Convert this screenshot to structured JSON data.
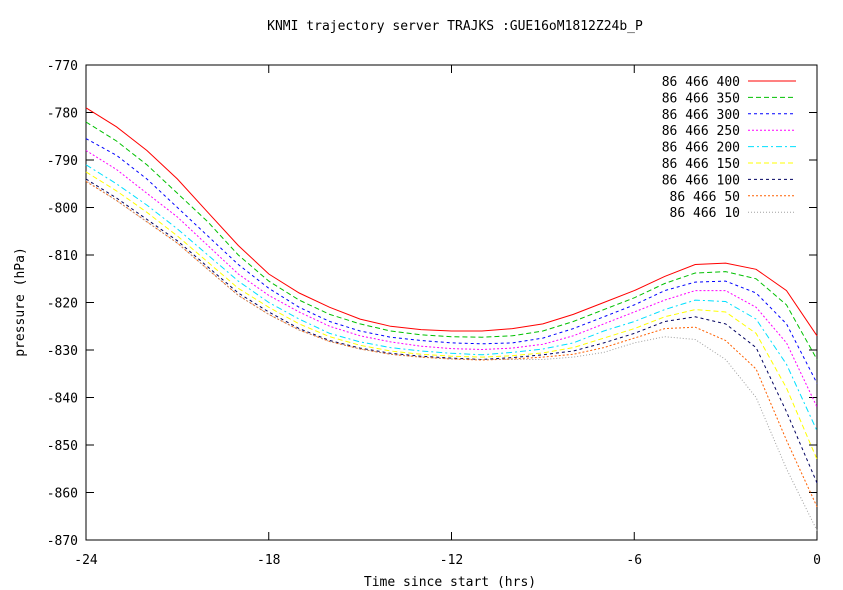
{
  "chart_data": {
    "type": "line",
    "title": "KNMI trajectory server TRAJKS :GUE16oM1812Z24b_P",
    "xlabel": "Time since start (hrs)",
    "ylabel": "pressure (hPa)",
    "xlim": [
      -24,
      0
    ],
    "ylim": [
      -870,
      -770
    ],
    "xticks": [
      -24,
      -18,
      -12,
      -6,
      0
    ],
    "xtick_labels": [
      "-24",
      "-18",
      "-12",
      "-6",
      "0"
    ],
    "yticks": [
      -870,
      -860,
      -850,
      -840,
      -830,
      -820,
      -810,
      -800,
      -790,
      -780,
      -770
    ],
    "ytick_labels": [
      "-870",
      "-860",
      "-850",
      "-840",
      "-830",
      "-820",
      "-810",
      "-800",
      "-790",
      "-780",
      "-770"
    ],
    "legend_position": "top-right",
    "x": [
      -24,
      -23,
      -22,
      -21,
      -20,
      -19,
      -18,
      -17,
      -16,
      -15,
      -14,
      -13,
      -12,
      -11,
      -10,
      -9,
      -8,
      -7,
      -6,
      -5,
      -4,
      -3,
      -2,
      -1,
      0
    ],
    "series": [
      {
        "name": "86 466 400",
        "color": "#ff0000",
        "dash": "solid",
        "values": [
          -779,
          -783,
          -788,
          -794,
          -801,
          -808,
          -814,
          -818,
          -821,
          -823.5,
          -825,
          -825.7,
          -826,
          -826,
          -825.5,
          -824.5,
          -822.5,
          -820,
          -817.5,
          -814.5,
          -812,
          -811.7,
          -813,
          -817.5,
          -827
        ]
      },
      {
        "name": "86 466 350",
        "color": "#00c000",
        "dash": "dashed",
        "values": [
          -782,
          -786,
          -791,
          -797,
          -803,
          -810,
          -815.5,
          -819.5,
          -822.5,
          -824.5,
          -826,
          -826.8,
          -827.2,
          -827.3,
          -827,
          -826,
          -824,
          -821.5,
          -819,
          -816,
          -813.8,
          -813.5,
          -815,
          -820.5,
          -832
        ]
      },
      {
        "name": "86 466 300",
        "color": "#0000ff",
        "dash": "short-dashed",
        "values": [
          -785.5,
          -789,
          -794,
          -800,
          -806,
          -812,
          -817,
          -821,
          -824,
          -826,
          -827.3,
          -828,
          -828.5,
          -828.7,
          -828.5,
          -827.5,
          -825.5,
          -823,
          -820.5,
          -817.5,
          -815.7,
          -815.5,
          -818,
          -824.5,
          -837
        ]
      },
      {
        "name": "86 466 250",
        "color": "#ff00ff",
        "dash": "dotted",
        "values": [
          -788,
          -792,
          -797,
          -802,
          -808,
          -814,
          -818.5,
          -822,
          -825,
          -827,
          -828.3,
          -829.2,
          -829.7,
          -829.9,
          -829.6,
          -828.8,
          -827,
          -824.5,
          -822,
          -819.5,
          -817.5,
          -817.5,
          -821,
          -828.5,
          -842
        ]
      },
      {
        "name": "86 466 200",
        "color": "#00e0ff",
        "dash": "dash-dot",
        "values": [
          -791,
          -795,
          -799.5,
          -804.5,
          -810,
          -815.5,
          -820,
          -823.5,
          -826.5,
          -828.3,
          -829.5,
          -830.2,
          -830.7,
          -831,
          -830.5,
          -829.8,
          -828.5,
          -826,
          -824,
          -821.5,
          -819.5,
          -819.8,
          -823.5,
          -833,
          -847
        ]
      },
      {
        "name": "86 466 150",
        "color": "#ffff00",
        "dash": "dashed",
        "values": [
          -792.5,
          -796.5,
          -801,
          -806,
          -811.5,
          -817,
          -821,
          -824.5,
          -827.2,
          -829,
          -830.2,
          -830.9,
          -831.3,
          -831.5,
          -831.2,
          -830.6,
          -829.5,
          -827.5,
          -825.5,
          -823,
          -821.5,
          -822,
          -826.5,
          -838,
          -853
        ]
      },
      {
        "name": "86 466 100",
        "color": "#000060",
        "dash": "short-dashed",
        "values": [
          -794,
          -798,
          -802.5,
          -807,
          -812.5,
          -818,
          -822,
          -825.5,
          -828,
          -829.6,
          -830.7,
          -831.3,
          -831.7,
          -832,
          -831.6,
          -831,
          -830.2,
          -828.5,
          -826.5,
          -824,
          -823,
          -824.5,
          -829.5,
          -843,
          -858
        ]
      },
      {
        "name": "86 466 50",
        "color": "#ff6000",
        "dash": "dotted",
        "values": [
          -794.5,
          -798.5,
          -803,
          -807.5,
          -813,
          -818.5,
          -822.5,
          -825.8,
          -828.2,
          -829.8,
          -830.9,
          -831.5,
          -831.9,
          -832.1,
          -831.9,
          -831.5,
          -830.9,
          -829.5,
          -827.5,
          -825.5,
          -825.2,
          -828,
          -834,
          -849,
          -863
        ]
      },
      {
        "name": "86 466 10",
        "color": "#a0a0a0",
        "dash": "fine-dotted",
        "values": [
          -794.3,
          -798.5,
          -803,
          -807.5,
          -813,
          -818.5,
          -822.5,
          -825.8,
          -828.2,
          -829.8,
          -830.9,
          -831.5,
          -831.9,
          -832,
          -832,
          -832,
          -831.5,
          -830.5,
          -828.5,
          -827.2,
          -827.8,
          -832,
          -840,
          -855,
          -868
        ]
      }
    ]
  }
}
